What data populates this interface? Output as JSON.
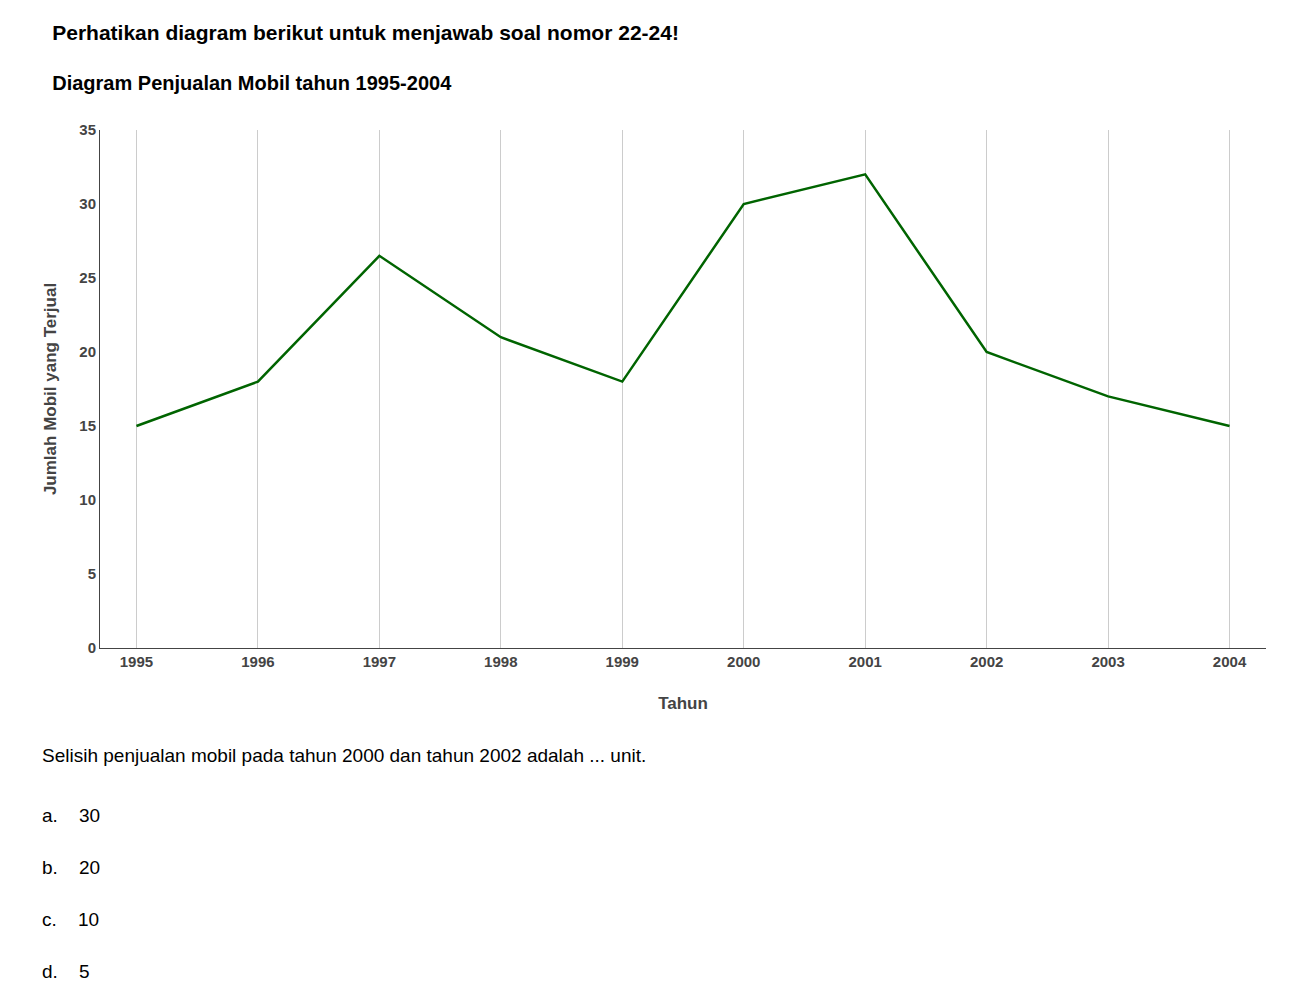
{
  "chart_data": {
    "type": "line",
    "title": "Perhatikan diagram berikut untuk menjawab soal nomor 22-24!",
    "subtitle": "Diagram Penjualan Mobil tahun 1995-2004",
    "x": [
      1995,
      1996,
      1997,
      1998,
      1999,
      2000,
      2001,
      2002,
      2003,
      2004
    ],
    "values": [
      15,
      18,
      26.5,
      21,
      18,
      30,
      32,
      20,
      17,
      15
    ],
    "xlabel": "Tahun",
    "ylabel": "Jumlah Mobil yang Terjual",
    "xlim": [
      1994.7,
      2004.3
    ],
    "xticks": [
      1995,
      1996,
      1997,
      1998,
      1999,
      2000,
      2001,
      2002,
      2003,
      2004
    ],
    "ylim": [
      0,
      35
    ],
    "yticks": [
      0,
      5,
      10,
      15,
      20,
      25,
      30,
      35
    ],
    "color": "#006400",
    "grid": "x",
    "annotations": [
      "Selisih penjualan mobil pada tahun 2000 dan tahun 2002 adalah ... unit.",
      "a.    30",
      "b.    20",
      "c.    10",
      "d.    5"
    ]
  }
}
